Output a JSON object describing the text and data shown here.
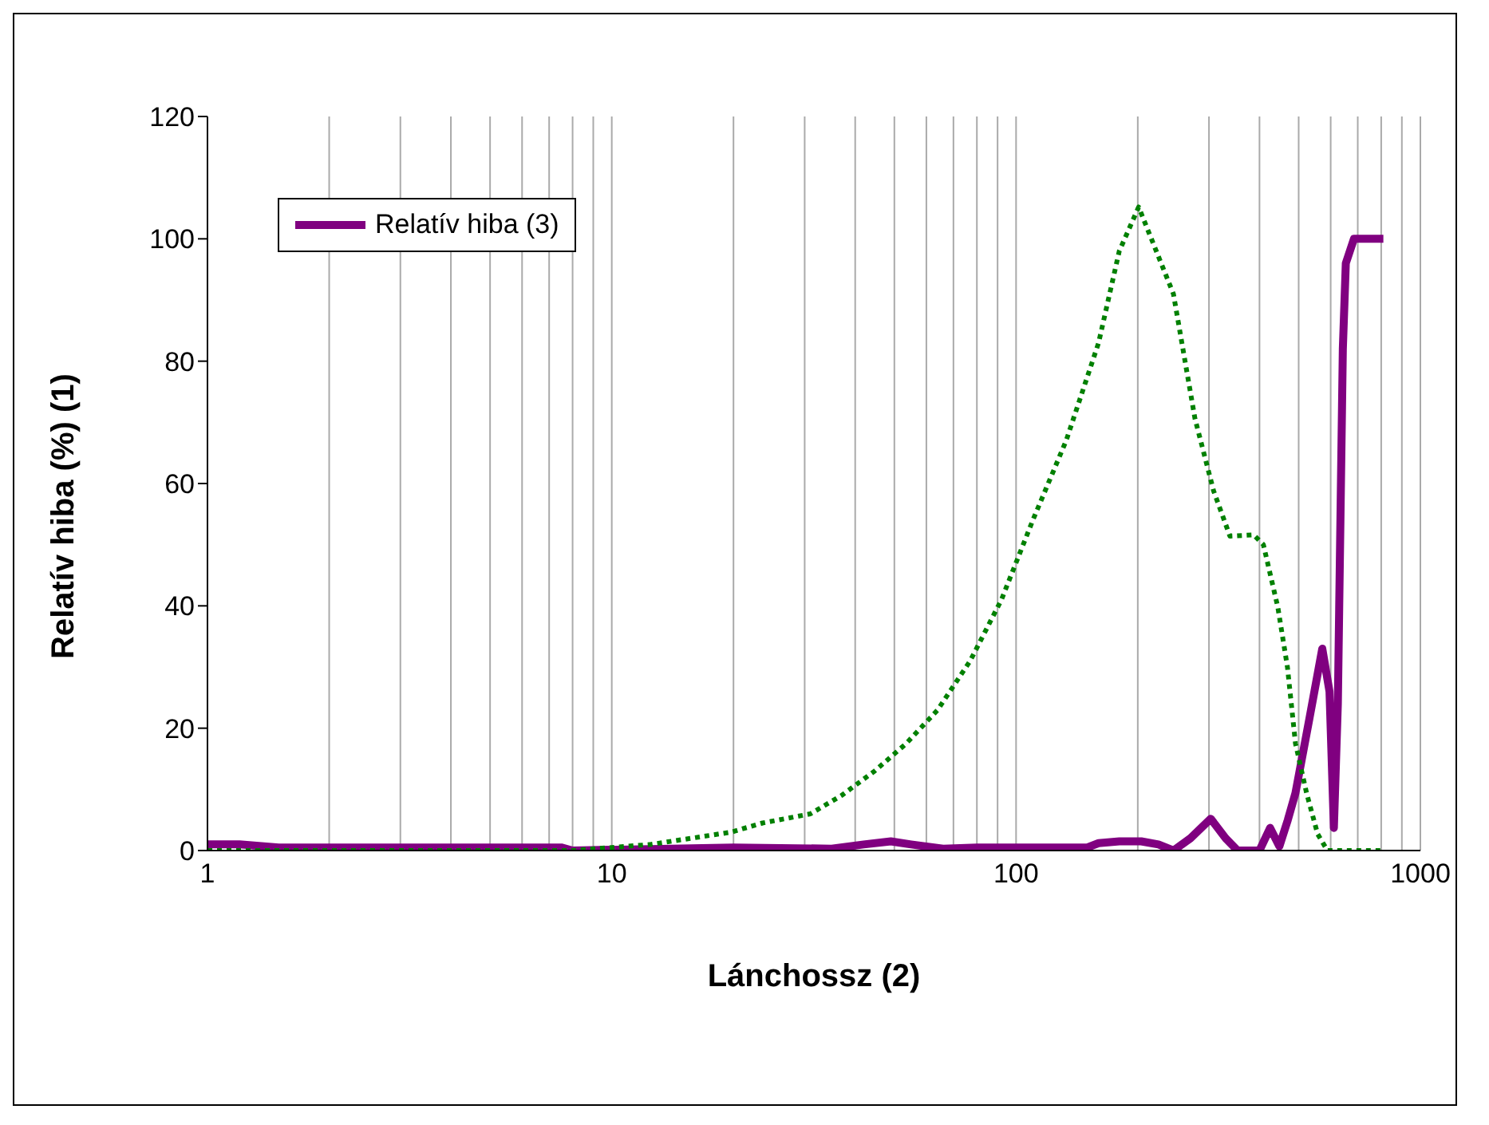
{
  "chart_data": {
    "type": "line",
    "xlabel": "Lánchossz (2)",
    "ylabel": "Relatív hiba (%) (1)",
    "log": "x",
    "grid": "x",
    "legend": "top left",
    "xlim": [
      1,
      1000
    ],
    "ylim": [
      0,
      120
    ],
    "xticks": [
      1,
      {
        "value": 2,
        "label": null
      },
      {
        "value": 3,
        "label": null
      },
      {
        "value": 4,
        "label": null
      },
      {
        "value": 5,
        "label": null
      },
      {
        "value": 6,
        "label": null
      },
      {
        "value": 7,
        "label": null
      },
      {
        "value": 8,
        "label": null
      },
      {
        "value": 9,
        "label": null
      },
      10,
      {
        "value": 20,
        "label": null
      },
      {
        "value": 30,
        "label": null
      },
      {
        "value": 40,
        "label": null
      },
      {
        "value": 50,
        "label": null
      },
      {
        "value": 60,
        "label": null
      },
      {
        "value": 70,
        "label": null
      },
      {
        "value": 80,
        "label": null
      },
      {
        "value": 90,
        "label": null
      },
      100,
      {
        "value": 200,
        "label": null
      },
      {
        "value": 300,
        "label": null
      },
      {
        "value": 400,
        "label": null
      },
      {
        "value": 500,
        "label": null
      },
      {
        "value": 600,
        "label": null
      },
      {
        "value": 700,
        "label": null
      },
      {
        "value": 800,
        "label": null
      },
      {
        "value": 900,
        "label": null
      },
      1000
    ],
    "yticks": [
      0,
      20,
      40,
      60,
      80,
      100,
      120
    ],
    "series": [
      {
        "name": "Relatív hiba (3)",
        "color": "#800080",
        "line_style": "solid",
        "x": [
          1,
          1.2,
          1.5,
          3,
          7.5,
          8,
          20,
          35,
          42,
          49,
          55,
          66,
          80,
          150,
          160,
          180,
          204,
          225,
          245,
          270,
          303,
          330,
          353,
          400,
          425,
          448,
          470,
          491,
          532,
          572,
          596,
          611,
          625,
          643,
          654,
          685,
          810
        ],
        "values": [
          1,
          1,
          0.5,
          0.5,
          0.5,
          0,
          0.5,
          0.3,
          1,
          1.5,
          1,
          0.3,
          0.5,
          0.5,
          1.2,
          1.5,
          1.5,
          1,
          0,
          2,
          5.2,
          2,
          0,
          0,
          3.7,
          0.7,
          5,
          9.4,
          21.7,
          33,
          26,
          3.7,
          24,
          82,
          96,
          100,
          100
        ]
      },
      {
        "color": "#008000",
        "line_style": "dotted",
        "x": [
          1,
          8,
          10,
          12.5,
          19.7,
          23.6,
          31,
          37,
          44.7,
          53.5,
          64,
          77,
          92,
          110,
          133,
          160,
          180,
          201,
          245,
          277,
          308,
          338,
          387,
          409,
          444,
          469,
          491,
          523,
          557,
          589,
          803
        ],
        "values": [
          0,
          0,
          0.5,
          1,
          3,
          4.5,
          6,
          9,
          13,
          17.5,
          23,
          31,
          41,
          54,
          67,
          83,
          98,
          105.2,
          91,
          70.6,
          58.8,
          51.4,
          51.6,
          50,
          39.8,
          30,
          17.5,
          9.4,
          2.7,
          0,
          0
        ]
      }
    ]
  }
}
